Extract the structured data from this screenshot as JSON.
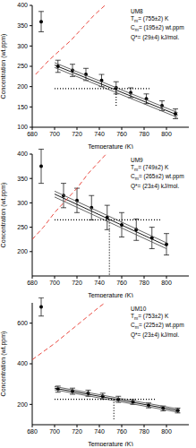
{
  "chart_data": [
    {
      "type": "scatter",
      "x_label": "Temperature (K)",
      "y_label": "Concentration (wt.ppm)",
      "xlim": [
        680,
        820
      ],
      "xticks": [
        680,
        700,
        720,
        740,
        760,
        780,
        800
      ],
      "ylim": [
        100,
        400
      ],
      "yticks": [
        100,
        150,
        200,
        250,
        300,
        350,
        400
      ],
      "annotations": [
        {
          "main": "UM8"
        },
        {
          "main": "T",
          "sub": "m",
          "rest": "= (755±2) K"
        },
        {
          "main": "C",
          "sub": "m",
          "rest": "= (195±2) wt.ppm"
        },
        {
          "main": "Q*",
          "rest": "= (29±4) kJ/mol."
        }
      ],
      "series": [
        {
          "type": "scatter",
          "marker": "circle",
          "color": "#000000",
          "x": [
            688,
            703,
            716,
            728,
            742,
            755,
            768,
            782,
            796,
            808
          ],
          "values": [
            360,
            250,
            240,
            230,
            215,
            197,
            185,
            170,
            153,
            133
          ],
          "errors": [
            25,
            15,
            15,
            15,
            15,
            15,
            12,
            12,
            12,
            12
          ]
        },
        {
          "type": "line",
          "line_style": "solid",
          "color": "#000000",
          "x": [
            700,
            810
          ],
          "values": [
            253,
            130
          ]
        },
        {
          "type": "line",
          "line_style": "solid",
          "color": "#555555",
          "x": [
            700,
            810
          ],
          "values": [
            259,
            136
          ]
        },
        {
          "type": "line",
          "line_style": "solid",
          "color": "#555555",
          "x": [
            700,
            810
          ],
          "values": [
            247,
            124
          ]
        },
        {
          "type": "line",
          "line_style": "dashed",
          "color": "#e8352b",
          "x": [
            683,
            695,
            705,
            715,
            725,
            735,
            745
          ],
          "values": [
            230,
            265,
            290,
            315,
            345,
            375,
            400
          ]
        },
        {
          "type": "line",
          "line_style": "dotted",
          "color": "#000000",
          "x": [
            700,
            785
          ],
          "values": [
            195,
            195
          ]
        },
        {
          "type": "line",
          "line_style": "dotted",
          "color": "#000000",
          "x": [
            755,
            755
          ],
          "values": [
            195,
            150
          ]
        }
      ]
    },
    {
      "type": "scatter",
      "x_label": "Temperature (K)",
      "y_label": "Concentration (wt.ppm)",
      "xlim": [
        680,
        820
      ],
      "xticks": [
        680,
        700,
        720,
        740,
        760,
        780,
        800
      ],
      "ylim": [
        150,
        400
      ],
      "yticks": [
        200,
        250,
        300,
        350,
        400
      ],
      "annotations": [
        {
          "main": "UM9"
        },
        {
          "main": "T",
          "sub": "m",
          "rest": "= (749±2) K"
        },
        {
          "main": "C",
          "sub": "m",
          "rest": "= (265±2) wt.ppm"
        },
        {
          "main": "Q*",
          "rest": "= (23±4) kJ/mol."
        }
      ],
      "series": [
        {
          "type": "scatter",
          "marker": "circle",
          "color": "#000000",
          "x": [
            688,
            708,
            720,
            733,
            747,
            760,
            773,
            787,
            800
          ],
          "values": [
            375,
            315,
            305,
            290,
            270,
            255,
            245,
            228,
            215
          ],
          "errors": [
            35,
            25,
            25,
            25,
            25,
            25,
            22,
            22,
            22
          ]
        },
        {
          "type": "line",
          "line_style": "solid",
          "color": "#000000",
          "x": [
            700,
            800
          ],
          "values": [
            318,
            212
          ]
        },
        {
          "type": "line",
          "line_style": "solid",
          "color": "#555555",
          "x": [
            700,
            800
          ],
          "values": [
            324,
            218
          ]
        },
        {
          "type": "line",
          "line_style": "solid",
          "color": "#555555",
          "x": [
            700,
            800
          ],
          "values": [
            312,
            206
          ]
        },
        {
          "type": "line",
          "line_style": "dashed",
          "color": "#e8352b",
          "x": [
            680,
            690,
            700,
            710,
            720,
            730,
            740,
            746
          ],
          "values": [
            225,
            250,
            280,
            305,
            330,
            360,
            385,
            400
          ]
        },
        {
          "type": "line",
          "line_style": "dotted",
          "color": "#000000",
          "x": [
            700,
            795
          ],
          "values": [
            265,
            265
          ]
        },
        {
          "type": "line",
          "line_style": "dotted",
          "color": "#000000",
          "x": [
            749,
            749
          ],
          "values": [
            265,
            150
          ]
        }
      ]
    },
    {
      "type": "scatter",
      "x_label": "Temperature (K)",
      "y_label": "Concentration (wt.ppm)",
      "xlim": [
        680,
        820
      ],
      "xticks": [
        680,
        700,
        720,
        740,
        760,
        780,
        800
      ],
      "ylim": [
        100,
        700
      ],
      "yticks": [
        200,
        400,
        600
      ],
      "annotations": [
        {
          "main": "UM10"
        },
        {
          "main": "T",
          "sub": "m",
          "rest": "= (753±2) K"
        },
        {
          "main": "C",
          "sub": "m",
          "rest": "= (225±2) wt.ppm"
        },
        {
          "main": "Q*",
          "rest": "= (23±4) kJ/mol."
        }
      ],
      "series": [
        {
          "type": "scatter",
          "marker": "circle",
          "color": "#000000",
          "x": [
            688,
            703,
            716,
            730,
            743,
            757,
            770,
            784,
            797,
            810
          ],
          "values": [
            680,
            275,
            265,
            255,
            240,
            225,
            212,
            195,
            180,
            170
          ],
          "errors": [
            45,
            15,
            15,
            15,
            15,
            15,
            12,
            12,
            12,
            12
          ]
        },
        {
          "type": "line",
          "line_style": "solid",
          "color": "#000000",
          "x": [
            700,
            812
          ],
          "values": [
            280,
            168
          ]
        },
        {
          "type": "line",
          "line_style": "solid",
          "color": "#555555",
          "x": [
            700,
            812
          ],
          "values": [
            288,
            176
          ]
        },
        {
          "type": "line",
          "line_style": "solid",
          "color": "#555555",
          "x": [
            700,
            812
          ],
          "values": [
            272,
            160
          ]
        },
        {
          "type": "line",
          "line_style": "dashed",
          "color": "#e8352b",
          "x": [
            680,
            690,
            700,
            710,
            720,
            730,
            740,
            745
          ],
          "values": [
            420,
            460,
            500,
            545,
            590,
            635,
            680,
            700
          ]
        },
        {
          "type": "line",
          "line_style": "dotted",
          "color": "#000000",
          "x": [
            700,
            790
          ],
          "values": [
            225,
            225
          ]
        },
        {
          "type": "line",
          "line_style": "dotted",
          "color": "#000000",
          "x": [
            753,
            753
          ],
          "values": [
            225,
            120
          ]
        }
      ]
    }
  ]
}
